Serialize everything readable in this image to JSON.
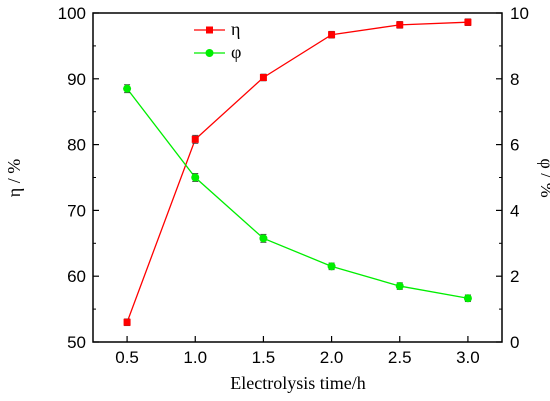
{
  "chart_data": {
    "type": "line",
    "x": [
      0.5,
      1.0,
      1.5,
      2.0,
      2.5,
      3.0
    ],
    "x_tick_labels": [
      "0.5",
      "1.0",
      "1.5",
      "2.0",
      "2.5",
      "3.0"
    ],
    "xlabel": "Electrolysis time/h",
    "xlim": [
      0.25,
      3.25
    ],
    "ylabel_left": "η / %",
    "ylim_left": [
      50,
      100
    ],
    "y_left_ticks": [
      "50",
      "60",
      "70",
      "80",
      "90",
      "100"
    ],
    "ylabel_right": "φ / %",
    "ylim_right": [
      0,
      10
    ],
    "y_right_ticks": [
      "0",
      "2",
      "4",
      "6",
      "8",
      "10"
    ],
    "grid": false,
    "legend_position": "top-center",
    "series": [
      {
        "name": "η",
        "axis": "left",
        "color": "#ff0000",
        "marker": "square",
        "values": [
          53.0,
          80.8,
          90.2,
          96.7,
          98.2,
          98.6
        ],
        "errors": [
          0.5,
          0.6,
          0.5,
          0.5,
          0.5,
          0.5
        ]
      },
      {
        "name": "φ",
        "axis": "right",
        "color": "#00ee00",
        "marker": "circle",
        "values": [
          7.7,
          5.0,
          3.15,
          2.3,
          1.7,
          1.33
        ],
        "errors": [
          0.12,
          0.12,
          0.12,
          0.1,
          0.1,
          0.1
        ]
      }
    ]
  }
}
